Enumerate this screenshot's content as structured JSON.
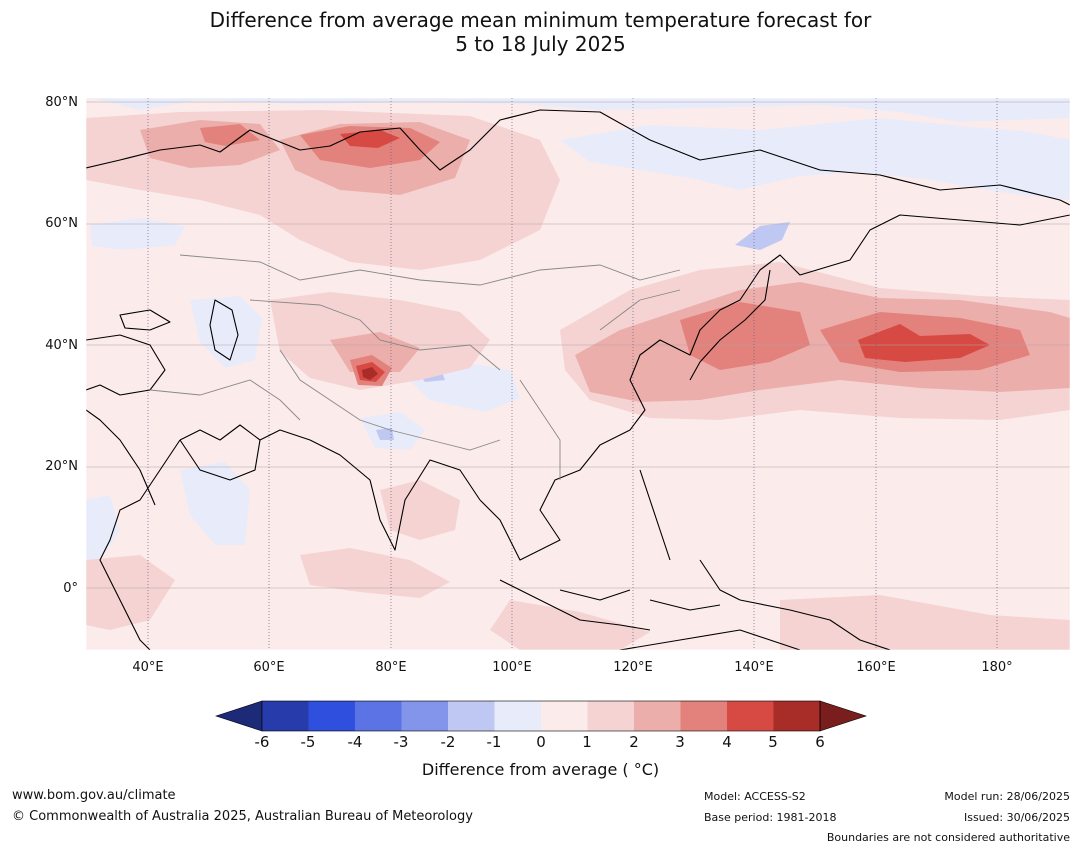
{
  "title": {
    "line1": "Difference from average mean minimum temperature forecast for",
    "line2": "5 to 18 July 2025"
  },
  "map": {
    "lat_labels": [
      "80°N",
      "60°N",
      "40°N",
      "20°N",
      "0°"
    ],
    "lon_labels": [
      "40°E",
      "60°E",
      "80°E",
      "100°E",
      "120°E",
      "140°E",
      "160°E",
      "180°"
    ],
    "extent": {
      "lon_min": 30,
      "lon_max": 192,
      "lat_min": -10,
      "lat_max": 81
    }
  },
  "colorbar": {
    "ticks": [
      "-6",
      "-5",
      "-4",
      "-3",
      "-2",
      "-1",
      "0",
      "1",
      "2",
      "3",
      "4",
      "5",
      "6"
    ],
    "colors": [
      "#1c2a78",
      "#283bab",
      "#2f4fdf",
      "#5b73e5",
      "#8395ea",
      "#bfc8f3",
      "#e8ebfa",
      "#fcebeb",
      "#f5d3d3",
      "#ecaeaa",
      "#e3817c",
      "#d74a44",
      "#a82c28",
      "#7a1d1d"
    ],
    "label": "Difference from average ( °C)"
  },
  "footer": {
    "url": "www.bom.gov.au/climate",
    "copyright": "© Commonwealth of Australia 2025, Australian Bureau of Meteorology",
    "model": "Model: ACCESS-S2",
    "base_period": "Base period: 1981-2018",
    "model_run": "Model run: 28/06/2025",
    "issued": "Issued: 30/06/2025",
    "disclaimer": "Boundaries are not considered authoritative"
  }
}
